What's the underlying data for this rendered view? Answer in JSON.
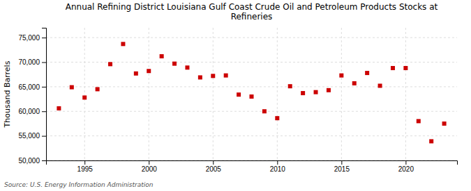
{
  "chart_data": {
    "type": "scatter",
    "title": "Annual Refining District Louisiana Gulf Coast Crude Oil and Petroleum Products Stocks at\nRefineries",
    "y_label": "Thousand Barrels",
    "annotations": [
      "Source: U.S. Energy Information Administration"
    ],
    "x": [
      1993,
      1994,
      1995,
      1996,
      1997,
      1998,
      1999,
      2000,
      2001,
      2002,
      2003,
      2004,
      2005,
      2006,
      2007,
      2008,
      2009,
      2010,
      2011,
      2012,
      2013,
      2014,
      2015,
      2016,
      2017,
      2018,
      2019,
      2020,
      2021,
      2022,
      2023
    ],
    "values": [
      60600,
      64900,
      62800,
      64500,
      69600,
      73700,
      67700,
      68200,
      71200,
      69700,
      68900,
      66900,
      67200,
      67300,
      63400,
      63000,
      60000,
      58600,
      65100,
      63700,
      63900,
      64300,
      67300,
      65700,
      67800,
      65200,
      68800,
      68800,
      58000,
      53900,
      57500
    ],
    "color": "#cc0000",
    "marker": "square",
    "xlim": [
      1992,
      2024
    ],
    "xticks": [
      1995,
      2000,
      2005,
      2010,
      2015,
      2020
    ],
    "ylim": [
      50000,
      77000
    ],
    "yticks": [
      {
        "value": 50000,
        "label": "50,000"
      },
      {
        "value": 55000,
        "label": "55,000"
      },
      {
        "value": 60000,
        "label": "60,000"
      },
      {
        "value": 65000,
        "label": "65,000"
      },
      {
        "value": 70000,
        "label": "70,000"
      },
      {
        "value": 75000,
        "label": "75,000"
      }
    ],
    "grid": true
  }
}
